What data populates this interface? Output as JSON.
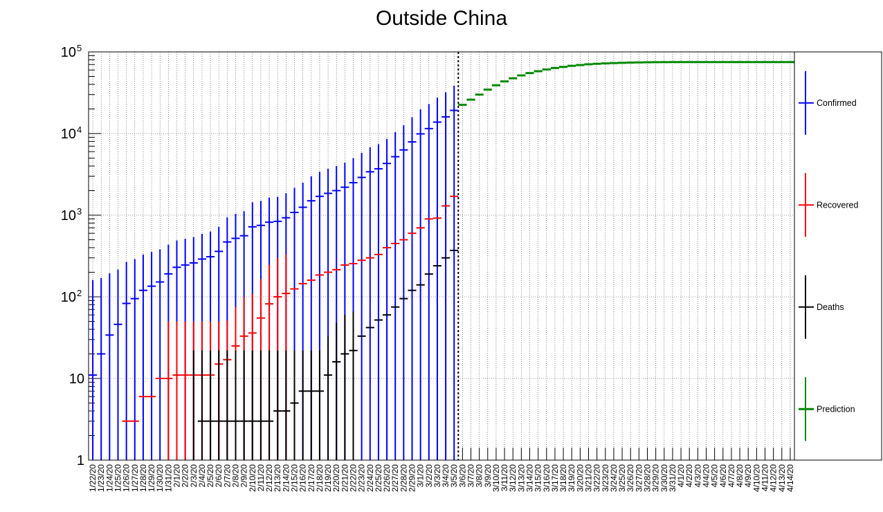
{
  "chart_data": {
    "type": "scatter",
    "title": "Outside China",
    "x": [
      "1/22/20",
      "1/23/20",
      "1/24/20",
      "1/25/20",
      "1/26/20",
      "1/27/20",
      "1/28/20",
      "1/29/20",
      "1/30/20",
      "1/31/20",
      "2/1/20",
      "2/2/20",
      "2/3/20",
      "2/4/20",
      "2/5/20",
      "2/6/20",
      "2/7/20",
      "2/8/20",
      "2/9/20",
      "2/10/20",
      "2/11/20",
      "2/12/20",
      "2/13/20",
      "2/14/20",
      "2/15/20",
      "2/16/20",
      "2/17/20",
      "2/18/20",
      "2/19/20",
      "2/20/20",
      "2/21/20",
      "2/22/20",
      "2/23/20",
      "2/24/20",
      "2/25/20",
      "2/26/20",
      "2/27/20",
      "2/28/20",
      "2/29/20",
      "3/1/20",
      "3/2/20",
      "3/3/20",
      "3/4/20",
      "3/5/20",
      "3/6/20",
      "3/7/20",
      "3/8/20",
      "3/9/20",
      "3/10/20",
      "3/11/20",
      "3/12/20",
      "3/13/20",
      "3/14/20",
      "3/15/20",
      "3/16/20",
      "3/17/20",
      "3/18/20",
      "3/19/20",
      "3/20/20",
      "3/21/20",
      "3/22/20",
      "3/23/20",
      "3/24/20",
      "3/25/20",
      "3/26/20",
      "3/27/20",
      "3/28/20",
      "3/29/20",
      "3/30/20",
      "3/31/20",
      "4/1/20",
      "4/2/20",
      "4/3/20",
      "4/4/20",
      "4/5/20",
      "4/6/20",
      "4/7/20",
      "4/8/20",
      "4/9/20",
      "4/10/20",
      "4/11/20",
      "4/12/20",
      "4/13/20",
      "4/14/20"
    ],
    "yscale": "log",
    "ylim": [
      1,
      100000
    ],
    "yticks": [
      {
        "value": 1,
        "base": "1",
        "sup": ""
      },
      {
        "value": 10,
        "base": "10",
        "sup": ""
      },
      {
        "value": 100,
        "base": "10",
        "sup": "2"
      },
      {
        "value": 1000,
        "base": "10",
        "sup": "3"
      },
      {
        "value": 10000,
        "base": "10",
        "sup": "4"
      },
      {
        "value": 100000,
        "base": "10",
        "sup": "5"
      }
    ],
    "grid": true,
    "legend_position": "right",
    "vertical_marker": "3/5/20",
    "series": [
      {
        "name": "Confirmed",
        "color": "#0000ff",
        "start": "1/22/20",
        "values": [
          11,
          20,
          34,
          46,
          83,
          95,
          120,
          135,
          152,
          191,
          230,
          245,
          260,
          290,
          310,
          360,
          470,
          520,
          560,
          720,
          750,
          820,
          840,
          930,
          1080,
          1250,
          1500,
          1700,
          1850,
          2000,
          2200,
          2500,
          2900,
          3400,
          3700,
          4300,
          5200,
          6300,
          7900,
          9900,
          11500,
          13800,
          16000,
          19200
        ],
        "err": [
          150,
          150,
          160,
          170,
          185,
          195,
          210,
          220,
          230,
          245,
          260,
          270,
          280,
          300,
          320,
          360,
          470,
          520,
          560,
          720,
          750,
          820,
          840,
          930,
          1080,
          1250,
          1500,
          1700,
          1850,
          2000,
          2200,
          2500,
          2900,
          3400,
          3700,
          4300,
          5200,
          6300,
          7900,
          9900,
          11500,
          13800,
          16000,
          19200
        ]
      },
      {
        "name": "Recovered",
        "color": "#ff0000",
        "start": "1/22/20",
        "values": [
          0,
          0,
          0,
          0,
          3,
          3,
          6,
          6,
          10,
          10,
          11,
          11,
          11,
          11,
          11,
          15,
          17,
          25,
          33,
          36,
          55,
          82,
          100,
          110,
          125,
          145,
          160,
          185,
          200,
          215,
          245,
          255,
          280,
          300,
          330,
          400,
          450,
          500,
          600,
          700,
          900,
          920,
          1300,
          1700
        ],
        "err": [
          0,
          0,
          0,
          0,
          0,
          0,
          0,
          0,
          0,
          0,
          0,
          0,
          0,
          0,
          0,
          0,
          0,
          0,
          0,
          0,
          0,
          0,
          0,
          0,
          0,
          0,
          0,
          0,
          0,
          0,
          0,
          0,
          0,
          0,
          0,
          0,
          0,
          0,
          0,
          0,
          0,
          0,
          0,
          0
        ]
      },
      {
        "name": "Deaths",
        "color": "#000000",
        "start": "1/22/20",
        "values": [
          0,
          0,
          0,
          0,
          0,
          0,
          0,
          0,
          0,
          0,
          0,
          0,
          0,
          3,
          3,
          3,
          3,
          3,
          3,
          3,
          3,
          3,
          4,
          4,
          5,
          7,
          7,
          7,
          11,
          16,
          20,
          22,
          33,
          42,
          52,
          60,
          75,
          95,
          120,
          140,
          190,
          240,
          300,
          370
        ],
        "err": [
          0,
          0,
          0,
          0,
          0,
          0,
          0,
          0,
          0,
          0,
          0,
          0,
          0,
          0,
          0,
          0,
          0,
          0,
          0,
          0,
          0,
          0,
          0,
          0,
          0,
          0,
          0,
          0,
          0,
          0,
          0,
          0,
          0,
          0,
          0,
          0,
          0,
          0,
          0,
          0,
          0,
          0,
          0,
          0
        ]
      },
      {
        "name": "Prediction",
        "color": "#008800",
        "start": "3/6/20",
        "values": [
          22500,
          26000,
          30000,
          34500,
          39000,
          43500,
          47500,
          51500,
          55000,
          58000,
          61000,
          63500,
          65500,
          67500,
          69000,
          70500,
          71500,
          72300,
          73000,
          73500,
          74000,
          74300,
          74600,
          74800,
          74900,
          75000,
          75000,
          75000,
          75000,
          75000,
          75000,
          75000,
          75000,
          75000,
          75000,
          75000,
          75000,
          75000,
          75000,
          75000
        ]
      }
    ]
  }
}
